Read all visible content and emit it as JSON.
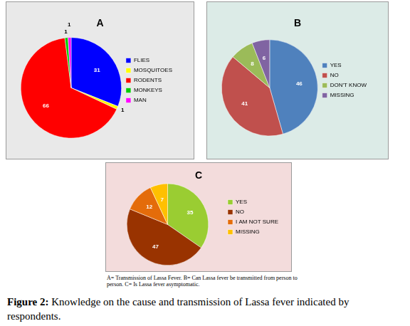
{
  "chart_data": [
    {
      "type": "pie",
      "title": "A",
      "categories": [
        "FLIES",
        "MOSQUITOES",
        "RODENTS",
        "MONKEYS",
        "MAN"
      ],
      "values": [
        31,
        1,
        66,
        1,
        1
      ],
      "colors": [
        "#0000ff",
        "#ffff00",
        "#ff0000",
        "#00cc00",
        "#ff00ff"
      ],
      "legend": "right",
      "data_labels": true
    },
    {
      "type": "pie",
      "title": "B",
      "categories": [
        "YES",
        "NO",
        "DON'T KNOW",
        "MISSING"
      ],
      "values": [
        46,
        41,
        8,
        6
      ],
      "colors": [
        "#4f81bd",
        "#c0504d",
        "#9bbb59",
        "#8064a2"
      ],
      "legend": "right",
      "data_labels": true
    },
    {
      "type": "pie",
      "title": "C",
      "categories": [
        "YES",
        "NO",
        "I AM NOT SURE",
        "MISSING"
      ],
      "values": [
        35,
        47,
        12,
        7
      ],
      "colors": [
        "#9acd32",
        "#993300",
        "#e46c0a",
        "#ffc000"
      ],
      "legend": "right",
      "data_labels": true
    }
  ],
  "panel_caption": "A= Transmission of Lassa Fever. B= Can Lassa fever be transmitted from person to person. C= Is Lassa fever asymptomatic.",
  "figure_caption": {
    "label": "Figure 2:",
    "text": "Knowledge on the cause and transmission of Lassa fever indicated by respondents."
  }
}
